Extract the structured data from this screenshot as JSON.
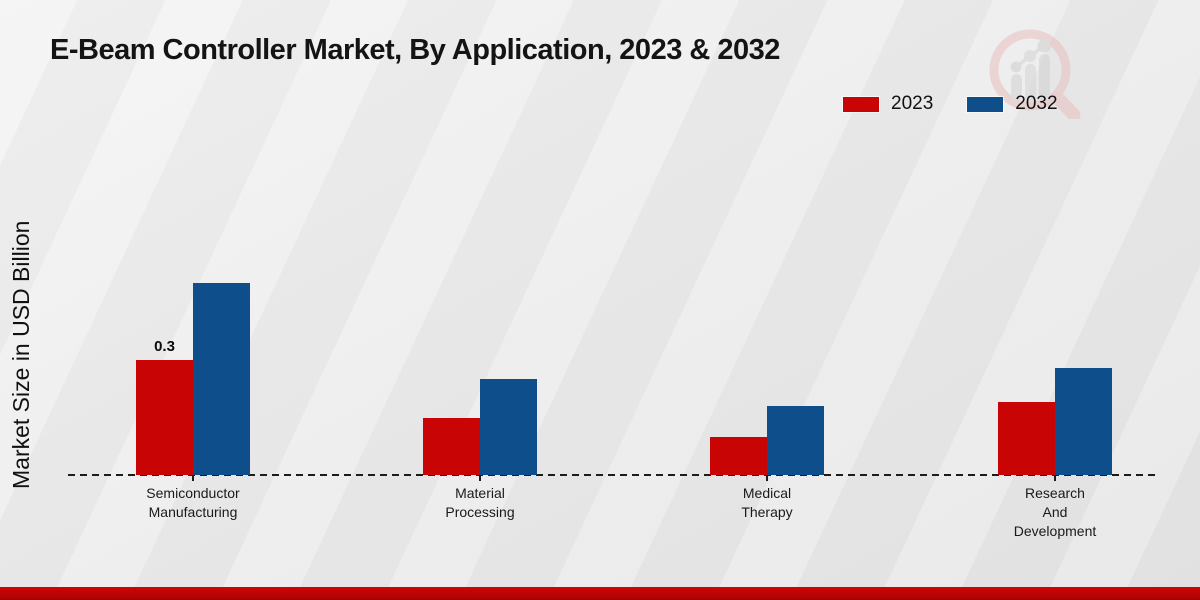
{
  "page": {
    "title": "E-Beam Controller Market, By Application, 2023 & 2032"
  },
  "legend": {
    "items": [
      {
        "label": "2023",
        "color": "#c90404"
      },
      {
        "label": "2032",
        "color": "#0d4e8b"
      }
    ]
  },
  "chart_data": {
    "type": "bar",
    "title": "E-Beam Controller Market, By Application, 2023 & 2032",
    "xlabel": "",
    "ylabel": "Market Size in USD Billion",
    "categories": [
      "Semiconductor Manufacturing",
      "Material Processing",
      "Medical Therapy",
      "Research And Development"
    ],
    "category_label_lines": [
      [
        "Semiconductor",
        "Manufacturing"
      ],
      [
        "Material",
        "Processing"
      ],
      [
        "Medical",
        "Therapy"
      ],
      [
        "Research",
        "And",
        "Development"
      ]
    ],
    "series": [
      {
        "name": "2023",
        "color": "#c90404",
        "values": [
          0.3,
          0.15,
          0.1,
          0.19
        ]
      },
      {
        "name": "2032",
        "color": "#0d4e8b",
        "values": [
          0.5,
          0.25,
          0.18,
          0.28
        ]
      }
    ],
    "value_labels": [
      {
        "category_index": 0,
        "series_index": 0,
        "text": "0.3"
      }
    ],
    "unit": "USD Billion",
    "ylim": [
      0,
      0.55
    ],
    "grid": false,
    "baseline_style": "dashed",
    "legend_position": "top-right"
  },
  "icons": {
    "watermark": "magnifier-growth-chart-logo"
  },
  "colors": {
    "background": "#ececec",
    "axis": "#1c1c1c",
    "bottom_strip": "#c00404",
    "title_text": "#141414"
  }
}
